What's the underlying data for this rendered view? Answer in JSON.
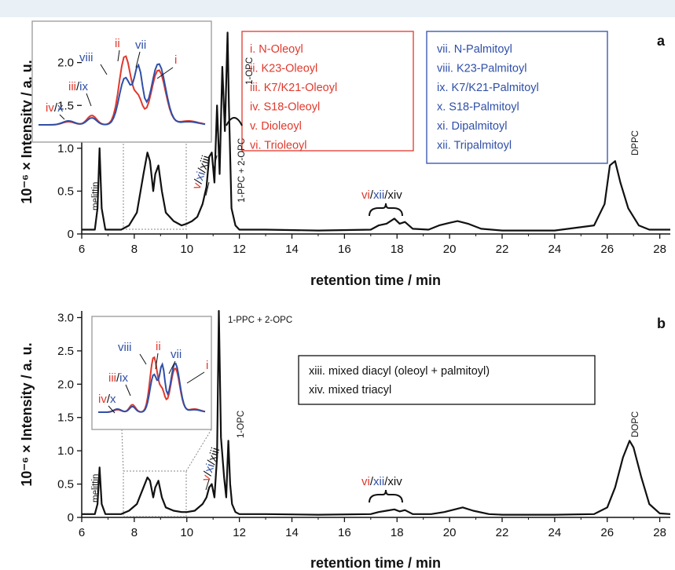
{
  "colors": {
    "red": "#e0392c",
    "blue": "#2f4fa8",
    "black": "#111111",
    "band": "#e9f1f7"
  },
  "chart_data": [
    {
      "panel": "a",
      "type": "line",
      "xlabel": "retention time / min",
      "ylabel": "10⁻⁶ × Intensity / a. u.",
      "xlim": [
        6,
        28.4
      ],
      "ylim": [
        0,
        2.4
      ],
      "xticks": [
        "6",
        "8",
        "10",
        "12",
        "14",
        "16",
        "18",
        "20",
        "22",
        "24",
        "26",
        "28"
      ],
      "yticks": [
        "0",
        "0.5",
        "1.0",
        "1.5",
        "2.0"
      ],
      "series": [
        {
          "x": [
            6.0,
            6.5,
            6.6,
            6.68,
            6.76,
            6.9,
            7.5,
            7.8,
            8.1,
            8.35,
            8.5,
            8.6,
            8.72,
            8.8,
            8.92,
            9.05,
            9.2,
            9.5,
            9.8,
            10.0,
            10.2,
            10.4,
            10.6,
            10.75,
            10.85,
            10.95,
            11.05,
            11.15,
            11.25,
            11.35,
            11.45,
            11.55,
            11.6,
            11.7,
            11.85,
            12.0,
            13.0,
            15.0,
            17.0,
            17.3,
            17.6,
            17.9,
            18.1,
            18.3,
            18.6,
            19.2,
            19.6,
            20.0,
            20.3,
            20.7,
            21.2,
            22.0,
            24.0,
            25.5,
            25.9,
            26.1,
            26.3,
            26.5,
            26.8,
            27.2,
            27.6,
            28.4
          ],
          "y": [
            0.05,
            0.05,
            0.3,
            1.0,
            0.3,
            0.05,
            0.05,
            0.1,
            0.25,
            0.7,
            0.95,
            0.85,
            0.5,
            0.7,
            0.8,
            0.5,
            0.25,
            0.15,
            0.1,
            0.12,
            0.15,
            0.2,
            0.35,
            0.55,
            0.9,
            0.95,
            0.6,
            1.5,
            0.7,
            1.95,
            1.2,
            2.35,
            1.5,
            0.3,
            0.1,
            0.05,
            0.05,
            0.04,
            0.05,
            0.1,
            0.12,
            0.18,
            0.12,
            0.14,
            0.06,
            0.05,
            0.1,
            0.13,
            0.15,
            0.12,
            0.06,
            0.04,
            0.04,
            0.1,
            0.35,
            0.8,
            0.85,
            0.6,
            0.3,
            0.1,
            0.05,
            0.05
          ]
        }
      ],
      "peak_labels": [
        "melittin",
        "1-OPC",
        "1-PPC + 2-OPC",
        "DPPC",
        "xiii"
      ],
      "group_labels": [
        {
          "parts": [
            {
              "t": "v",
              "c": "red"
            },
            {
              "t": "/",
              "c": "black"
            },
            {
              "t": "xi",
              "c": "blue"
            },
            {
              "t": "/",
              "c": "black"
            },
            {
              "t": "xiii",
              "c": "black"
            }
          ]
        },
        {
          "parts": [
            {
              "t": "vi",
              "c": "red"
            },
            {
              "t": "/",
              "c": "black"
            },
            {
              "t": "xii",
              "c": "blue"
            },
            {
              "t": "/",
              "c": "black"
            },
            {
              "t": "xiv",
              "c": "black"
            }
          ]
        }
      ],
      "inset_labels": [
        {
          "parts": [
            {
              "t": "viii",
              "c": "blue"
            }
          ]
        },
        {
          "parts": [
            {
              "t": "ii",
              "c": "red"
            }
          ]
        },
        {
          "parts": [
            {
              "t": "vii",
              "c": "blue"
            }
          ]
        },
        {
          "parts": [
            {
              "t": "i",
              "c": "red"
            }
          ]
        },
        {
          "parts": [
            {
              "t": "iii",
              "c": "red"
            },
            {
              "t": "/",
              "c": "black"
            },
            {
              "t": "ix",
              "c": "blue"
            }
          ]
        },
        {
          "parts": [
            {
              "t": "iv",
              "c": "red"
            },
            {
              "t": "/",
              "c": "black"
            },
            {
              "t": "x",
              "c": "blue"
            }
          ]
        }
      ],
      "legend_red": [
        "i. N-Oleoyl",
        "ii. K23-Oleoyl",
        "iii. K7/K21-Oleoyl",
        "iv. S18-Oleoyl",
        "v. Dioleoyl",
        "vi. Trioleoyl"
      ],
      "legend_blue": [
        "vii. N-Palmitoyl",
        "viii. K23-Palmitoyl",
        "ix. K7/K21-Palmitoyl",
        "x. S18-Palmitoyl",
        "xi. Dipalmitoyl",
        "xii. Tripalmitoyl"
      ]
    },
    {
      "panel": "b",
      "type": "line",
      "xlabel": "retention time / min",
      "ylabel": "10⁻⁶ × Intensity / a. u.",
      "xlim": [
        6,
        28.4
      ],
      "ylim": [
        0,
        3.1
      ],
      "xticks": [
        "6",
        "8",
        "10",
        "12",
        "14",
        "16",
        "18",
        "20",
        "22",
        "24",
        "26",
        "28"
      ],
      "yticks": [
        "0",
        "0.5",
        "1.0",
        "1.5",
        "2.0",
        "2.5",
        "3.0"
      ],
      "series": [
        {
          "x": [
            6.0,
            6.5,
            6.6,
            6.68,
            6.76,
            6.9,
            7.5,
            7.8,
            8.1,
            8.35,
            8.5,
            8.6,
            8.72,
            8.8,
            8.92,
            9.05,
            9.2,
            9.5,
            9.8,
            10.0,
            10.3,
            10.6,
            10.75,
            10.85,
            10.95,
            11.05,
            11.15,
            11.22,
            11.3,
            11.42,
            11.5,
            11.58,
            11.65,
            11.72,
            11.85,
            12.0,
            13.0,
            15.0,
            17.0,
            17.3,
            17.6,
            17.9,
            18.1,
            18.3,
            18.6,
            19.3,
            19.8,
            20.2,
            20.5,
            20.9,
            21.5,
            22.0,
            24.0,
            25.5,
            26.0,
            26.3,
            26.6,
            26.85,
            27.0,
            27.3,
            27.6,
            28.0,
            28.4
          ],
          "y": [
            0.05,
            0.05,
            0.2,
            0.75,
            0.2,
            0.05,
            0.05,
            0.1,
            0.2,
            0.45,
            0.6,
            0.55,
            0.3,
            0.45,
            0.55,
            0.3,
            0.15,
            0.1,
            0.08,
            0.08,
            0.1,
            0.2,
            0.3,
            0.45,
            0.5,
            0.3,
            0.9,
            3.1,
            1.2,
            0.6,
            0.3,
            1.15,
            0.5,
            0.2,
            0.08,
            0.05,
            0.05,
            0.04,
            0.05,
            0.08,
            0.1,
            0.12,
            0.09,
            0.11,
            0.05,
            0.05,
            0.08,
            0.12,
            0.15,
            0.1,
            0.05,
            0.04,
            0.04,
            0.05,
            0.15,
            0.45,
            0.9,
            1.15,
            1.05,
            0.6,
            0.2,
            0.06,
            0.05
          ]
        }
      ],
      "peak_labels": [
        "melittin",
        "1-OPC",
        "1-PPC + 2-OPC",
        "DOPC"
      ],
      "group_labels": [
        {
          "parts": [
            {
              "t": "v",
              "c": "red"
            },
            {
              "t": "/",
              "c": "black"
            },
            {
              "t": "xi",
              "c": "blue"
            },
            {
              "t": "/",
              "c": "black"
            },
            {
              "t": "xiii",
              "c": "black"
            }
          ]
        },
        {
          "parts": [
            {
              "t": "vi",
              "c": "red"
            },
            {
              "t": "/",
              "c": "black"
            },
            {
              "t": "xii",
              "c": "blue"
            },
            {
              "t": "/",
              "c": "black"
            },
            {
              "t": "xiv",
              "c": "black"
            }
          ]
        }
      ],
      "inset_labels": [
        {
          "parts": [
            {
              "t": "viii",
              "c": "blue"
            }
          ]
        },
        {
          "parts": [
            {
              "t": "ii",
              "c": "red"
            }
          ]
        },
        {
          "parts": [
            {
              "t": "vii",
              "c": "blue"
            }
          ]
        },
        {
          "parts": [
            {
              "t": "i",
              "c": "red"
            }
          ]
        },
        {
          "parts": [
            {
              "t": "iii",
              "c": "red"
            },
            {
              "t": "/",
              "c": "black"
            },
            {
              "t": "ix",
              "c": "blue"
            }
          ]
        },
        {
          "parts": [
            {
              "t": "iv",
              "c": "red"
            },
            {
              "t": "/",
              "c": "black"
            },
            {
              "t": "x",
              "c": "blue"
            }
          ]
        }
      ],
      "legend_black": [
        "xiii. mixed diacyl (oleoyl + palmitoyl)",
        "xiv. mixed triacyl"
      ]
    }
  ]
}
